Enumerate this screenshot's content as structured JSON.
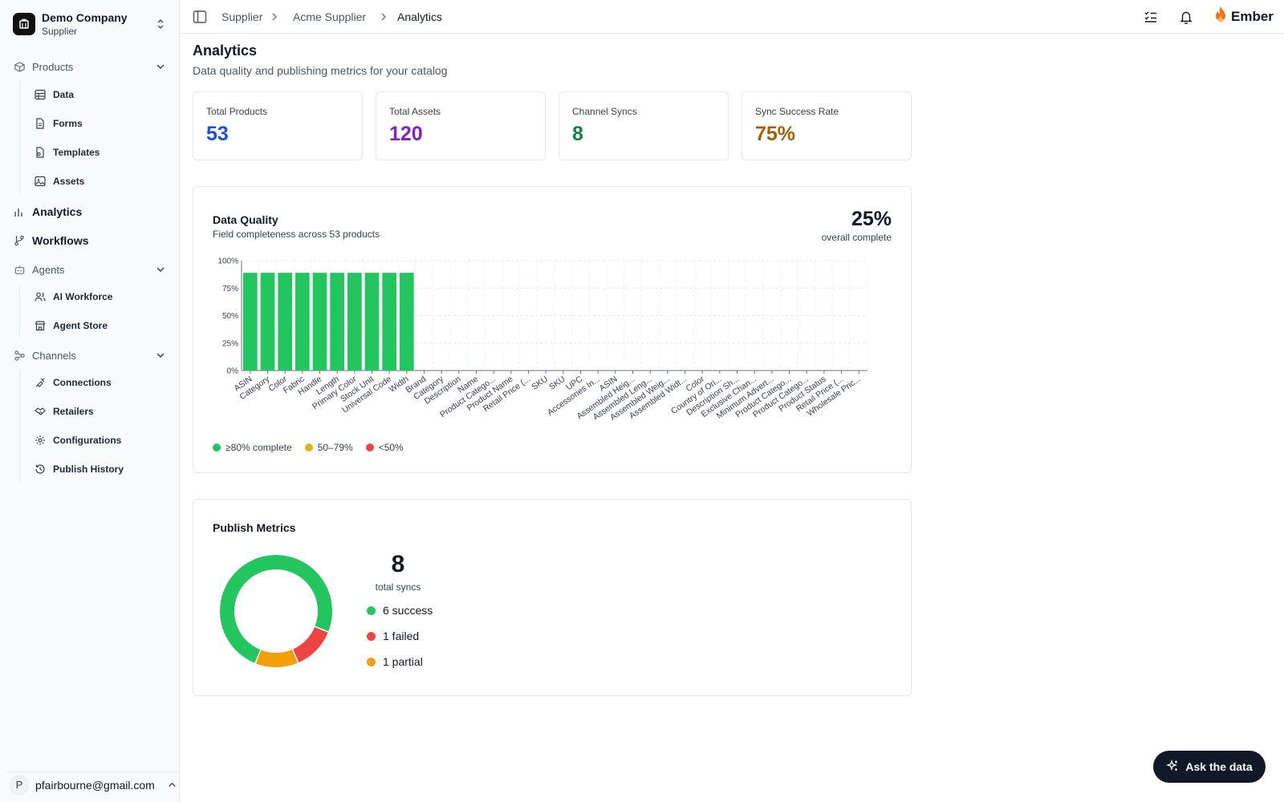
{
  "sidebar": {
    "company_name": "Demo Company",
    "company_role": "Supplier",
    "groups": {
      "products": "Products",
      "agents": "Agents",
      "channels": "Channels"
    },
    "products_items": [
      "Data",
      "Forms",
      "Templates",
      "Assets"
    ],
    "top_items": [
      "Analytics",
      "Workflows"
    ],
    "agents_items": [
      "AI Workforce",
      "Agent Store"
    ],
    "channels_items": [
      "Connections",
      "Retailers",
      "Configurations",
      "Publish History"
    ],
    "user_initial": "P",
    "user_email": "pfairbourne@gmail.com"
  },
  "topbar": {
    "breadcrumbs": [
      "Supplier",
      "Acme Supplier",
      "Analytics"
    ],
    "brand": "Ember"
  },
  "page": {
    "title": "Analytics",
    "subtitle": "Data quality and publishing metrics for your catalog"
  },
  "kpis": [
    {
      "label": "Total Products",
      "value": "53",
      "color": "#1d4ed8"
    },
    {
      "label": "Total Assets",
      "value": "120",
      "color": "#7e22ce"
    },
    {
      "label": "Channel Syncs",
      "value": "8",
      "color": "#15803d"
    },
    {
      "label": "Sync Success Rate",
      "value": "75%",
      "color": "#a16207"
    }
  ],
  "data_quality": {
    "title": "Data Quality",
    "subtitle": "Field completeness across 53 products",
    "overall_value": "25%",
    "overall_label": "overall complete",
    "legend": [
      "≥80% complete",
      "50–79%",
      "<50%"
    ],
    "legend_colors": [
      "#22c55e",
      "#eab308",
      "#ef4444"
    ]
  },
  "publish_metrics": {
    "title": "Publish Metrics",
    "total": "8",
    "total_label": "total syncs",
    "rows": [
      "6 success",
      "1 failed",
      "1 partial"
    ],
    "colors": [
      "#22c55e",
      "#ef4444",
      "#f59e0b"
    ]
  },
  "ask_button": "Ask the data",
  "chart_data": [
    {
      "type": "bar",
      "title": "Data Quality",
      "ylim": [
        0,
        100
      ],
      "yticks": [
        "0%",
        "25%",
        "50%",
        "75%",
        "100%"
      ],
      "grid": true,
      "categories": [
        "ASIN",
        "Category",
        "Color",
        "Fabric",
        "Handle",
        "Length",
        "Primary Color",
        "Stock Unit",
        "Universal Code",
        "Width",
        "Brand",
        "Category",
        "Description",
        "Name",
        "Product Catego...",
        "Product Name",
        "Retail Price (...",
        "SKU",
        "SKU",
        "UPC",
        "Accessories In...",
        "ASIN",
        "Assembled Heig...",
        "Assembled Leng...",
        "Assembled Weig...",
        "Assembled Widt...",
        "Color",
        "Country of Ori...",
        "Description Sh...",
        "Exclusive Chan...",
        "Minimum Advert...",
        "Product Catego...",
        "Product Catego...",
        "Product Status",
        "Retail Price (...",
        "Wholesale Pric..."
      ],
      "values": [
        89,
        89,
        89,
        89,
        89,
        89,
        89,
        89,
        89,
        89,
        0,
        0,
        0,
        0,
        0,
        0,
        0,
        0,
        0,
        0,
        0,
        0,
        0,
        0,
        0,
        0,
        0,
        0,
        0,
        0,
        0,
        0,
        0,
        0,
        0,
        0
      ],
      "bar_color": "#22c55e"
    },
    {
      "type": "pie",
      "title": "Publish Metrics",
      "labels": [
        "success",
        "failed",
        "partial"
      ],
      "values": [
        6,
        1,
        1
      ],
      "colors": [
        "#22c55e",
        "#ef4444",
        "#f59e0b"
      ]
    }
  ]
}
